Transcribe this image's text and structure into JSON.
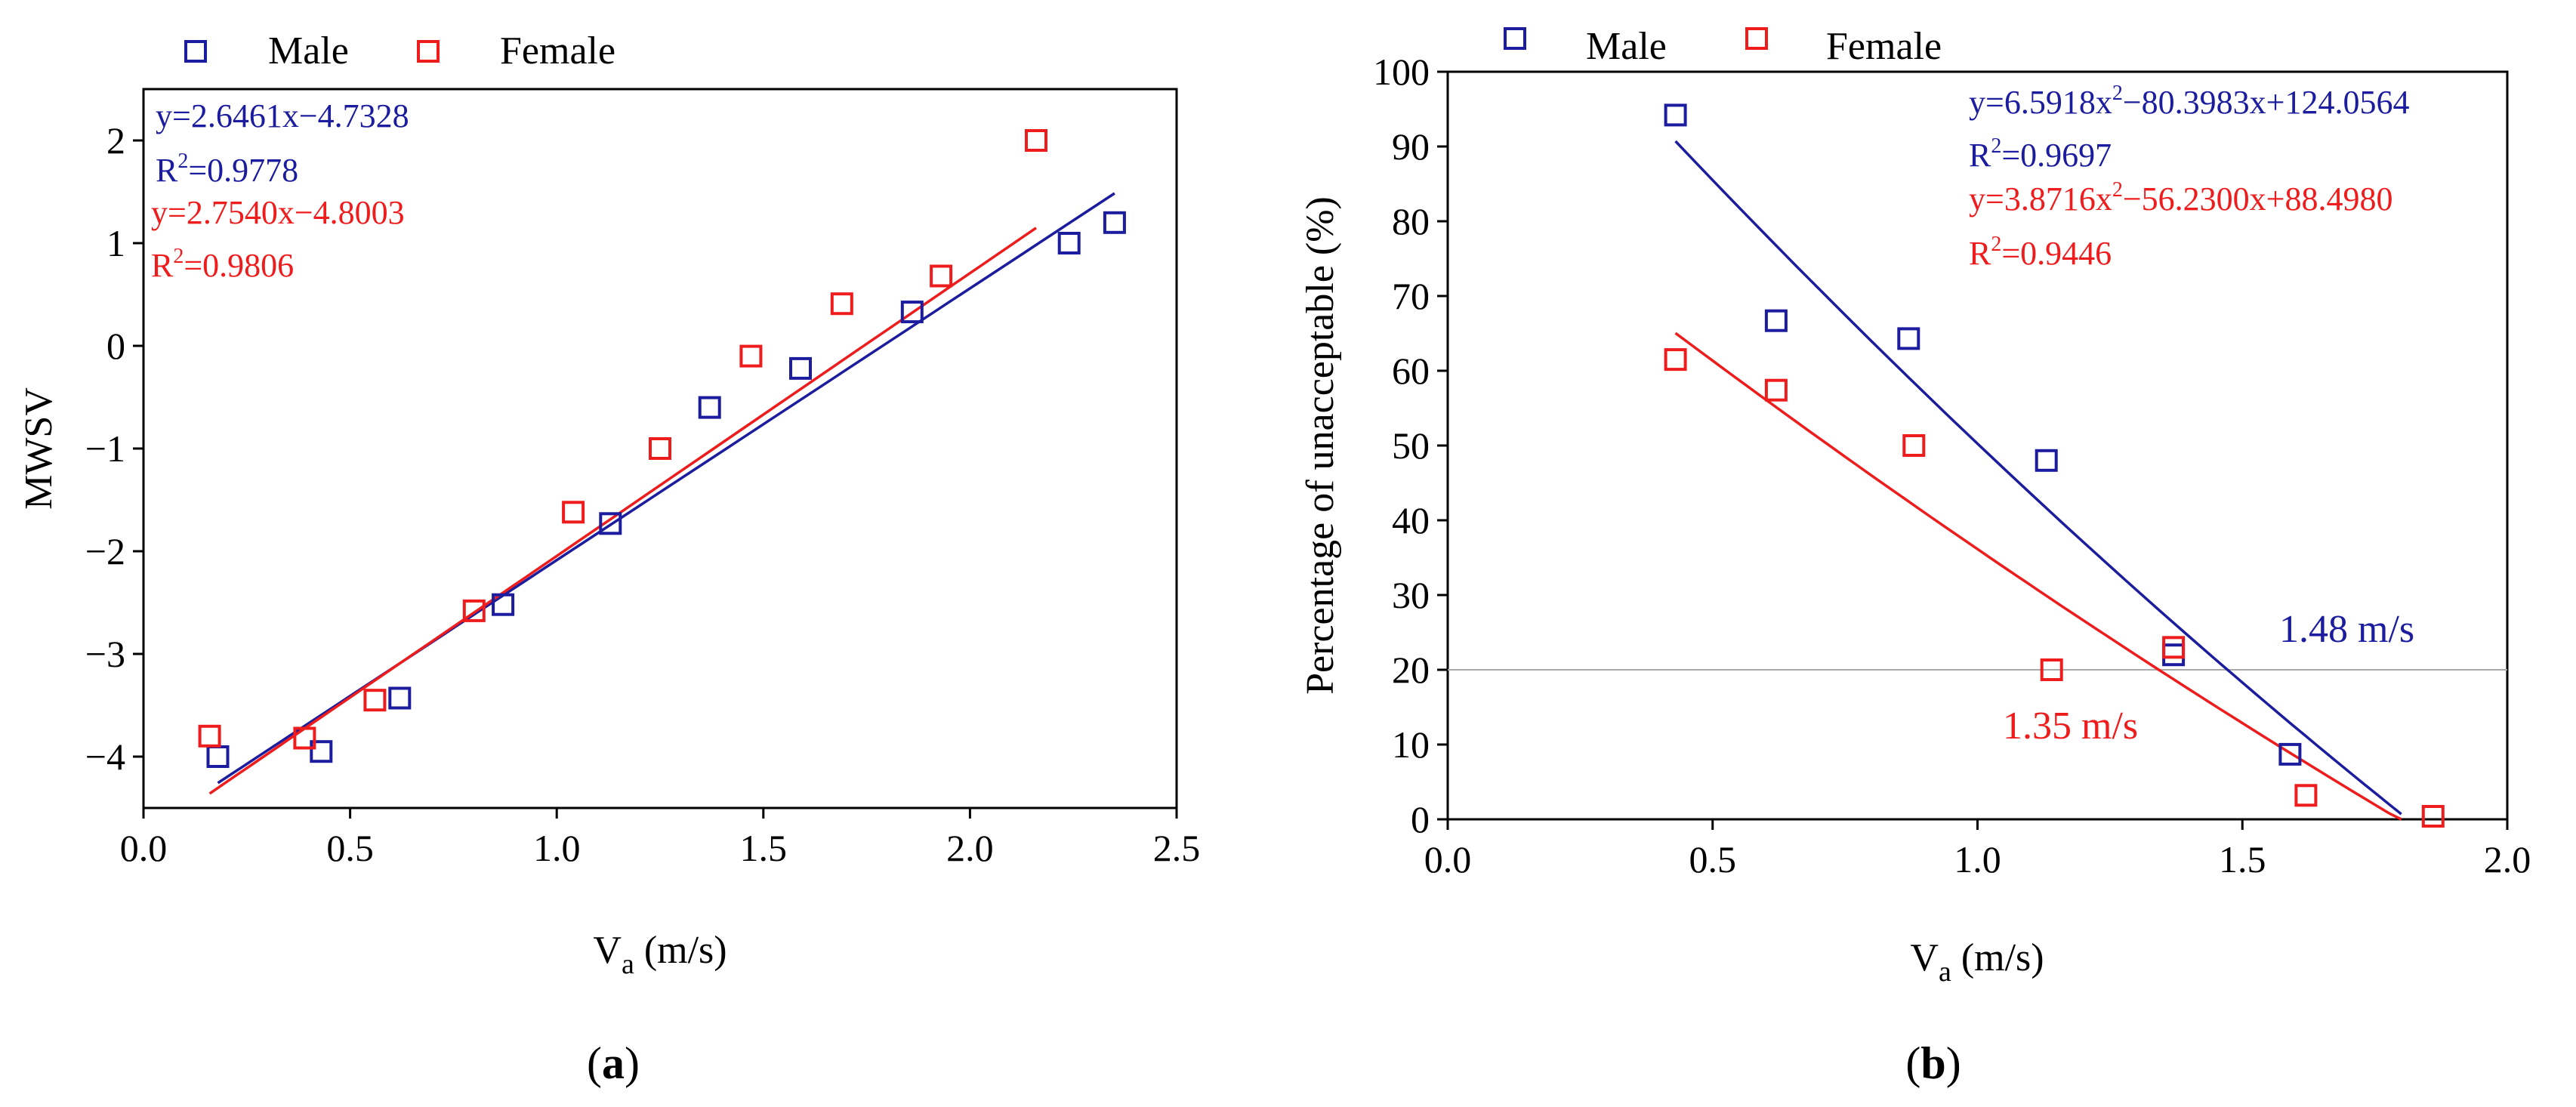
{
  "colors": {
    "male": "#1c1c9e",
    "female": "#ee1c1c",
    "axis": "#000000",
    "reference": "#aaaaaa"
  },
  "chart_data": [
    {
      "panel_label": "a",
      "type": "scatter",
      "title": "",
      "xlabel": {
        "main": "V",
        "sub": "a",
        "unit": " (m/s)"
      },
      "ylabel": "MWSV",
      "xlim": [
        0,
        2.5
      ],
      "ylim": [
        -4.5,
        2.5
      ],
      "xticks": [
        0.0,
        0.5,
        1.0,
        1.5,
        2.0,
        2.5
      ],
      "xtick_labels": [
        "0.0",
        "0.5",
        "1.0",
        "1.5",
        "2.0",
        "2.5"
      ],
      "yticks": [
        -4,
        -3,
        -2,
        -1,
        0,
        1,
        2
      ],
      "ytick_labels": [
        "−4",
        "−3",
        "−2",
        "−1",
        "0",
        "1",
        "2"
      ],
      "legend": {
        "position": "top",
        "entries": [
          "Male",
          "Female"
        ]
      },
      "series": [
        {
          "name": "Male",
          "color_key": "male",
          "x": [
            0.18,
            0.43,
            0.62,
            0.87,
            1.13,
            1.37,
            1.59,
            1.86,
            2.24,
            2.35
          ],
          "y": [
            -4.0,
            -3.95,
            -3.43,
            -2.52,
            -1.73,
            -0.6,
            -0.22,
            0.33,
            1.0,
            1.2
          ],
          "fit": {
            "kind": "linear",
            "a": 2.6461,
            "b": -4.7328,
            "x_range": [
              0.18,
              2.35
            ]
          },
          "equation": "y=2.6461x−4.7328",
          "r2": "=0.9778"
        },
        {
          "name": "Female",
          "color_key": "female",
          "x": [
            0.16,
            0.39,
            0.56,
            0.8,
            1.04,
            1.25,
            1.47,
            1.69,
            1.93,
            2.16
          ],
          "y": [
            -3.8,
            -3.82,
            -3.45,
            -2.58,
            -1.62,
            -1.0,
            -0.1,
            0.41,
            0.68,
            2.0
          ],
          "fit": {
            "kind": "linear",
            "a": 2.754,
            "b": -4.8003,
            "x_range": [
              0.16,
              2.16
            ]
          },
          "equation": "y=2.7540x−4.8003",
          "r2": "=0.9806"
        }
      ]
    },
    {
      "panel_label": "b",
      "type": "scatter",
      "title": "",
      "xlabel": {
        "main": "V",
        "sub": "a",
        "unit": " (m/s)"
      },
      "ylabel": "Percentage of unacceptable (%)",
      "xlim": [
        0,
        2.0
      ],
      "ylim": [
        0,
        100
      ],
      "xticks": [
        0.0,
        0.5,
        1.0,
        1.5,
        2.0
      ],
      "xtick_labels": [
        "0.0",
        "0.5",
        "1.0",
        "1.5",
        "2.0"
      ],
      "yticks": [
        0,
        10,
        20,
        30,
        40,
        50,
        60,
        70,
        80,
        90,
        100
      ],
      "ytick_labels": [
        "0",
        "10",
        "20",
        "30",
        "40",
        "50",
        "60",
        "70",
        "80",
        "90",
        "100"
      ],
      "reference_line_y": 20,
      "legend": {
        "position": "top",
        "entries": [
          "Male",
          "Female"
        ]
      },
      "series": [
        {
          "name": "Male",
          "color_key": "male",
          "x": [
            0.43,
            0.62,
            0.87,
            1.13,
            1.37,
            1.59
          ],
          "y": [
            94.2,
            66.7,
            64.3,
            48.0,
            22.0,
            8.7
          ],
          "fit": {
            "kind": "quadratic",
            "a": 6.5918,
            "b": -80.3983,
            "c": 124.0564,
            "x_range": [
              0.43,
              1.8
            ]
          },
          "equation_pre": "y=6.5918x",
          "equation_post": "−80.3983x+124.0564",
          "r2": "=0.9697",
          "threshold_label": "1.48 m/s"
        },
        {
          "name": "Female",
          "color_key": "female",
          "x": [
            0.43,
            0.62,
            0.88,
            1.14,
            1.37,
            1.62,
            1.86
          ],
          "y": [
            61.5,
            57.4,
            50.0,
            20.0,
            23.0,
            3.2,
            0.4
          ],
          "fit": {
            "kind": "quadratic",
            "a": 3.8716,
            "b": -56.23,
            "c": 88.498,
            "x_range": [
              0.43,
              1.8
            ]
          },
          "equation_pre": "y=3.8716x",
          "equation_post": "−56.2300x+88.4980",
          "r2": "=0.9446",
          "threshold_label": "1.35 m/s"
        }
      ]
    }
  ]
}
